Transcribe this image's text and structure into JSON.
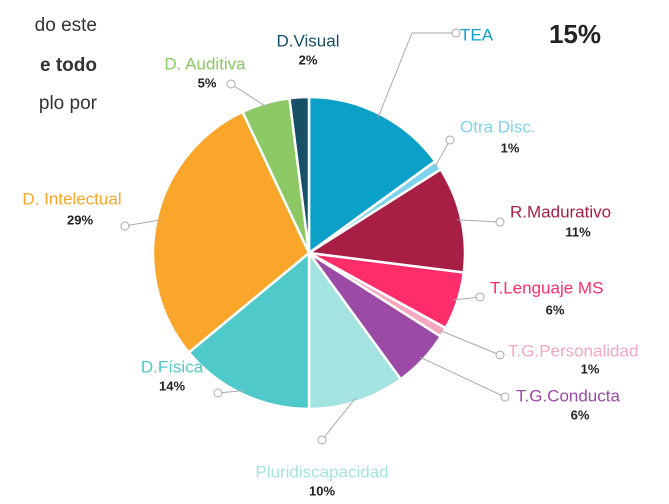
{
  "text_fragments": [
    "do este",
    "e todo",
    "plo por"
  ],
  "chart_data": {
    "type": "pie",
    "categories": [
      "TEA",
      "Otra Disc.",
      "R.Madurativo",
      "T.Lenguaje MS",
      "T.G.Personalidad",
      "T.G.Conducta",
      "Pluridiscapacidad",
      "D.Física",
      "D. Intelectual",
      "D. Auditiva",
      "D.Visual"
    ],
    "values": [
      15,
      1,
      11,
      6,
      1,
      6,
      10,
      14,
      29,
      5,
      2
    ],
    "value_labels": [
      "15%",
      "1%",
      "11%",
      "6%",
      "1%",
      "6%",
      "10%",
      "14%",
      "29%",
      "5%",
      "2%"
    ],
    "colors": [
      "#0aa0c8",
      "#7fd3ec",
      "#a81f45",
      "#ff2d6a",
      "#f7a8c0",
      "#9b4aa5",
      "#a3e4e2",
      "#4fc9c9",
      "#f9a62a",
      "#8cc863",
      "#174f66"
    ]
  }
}
